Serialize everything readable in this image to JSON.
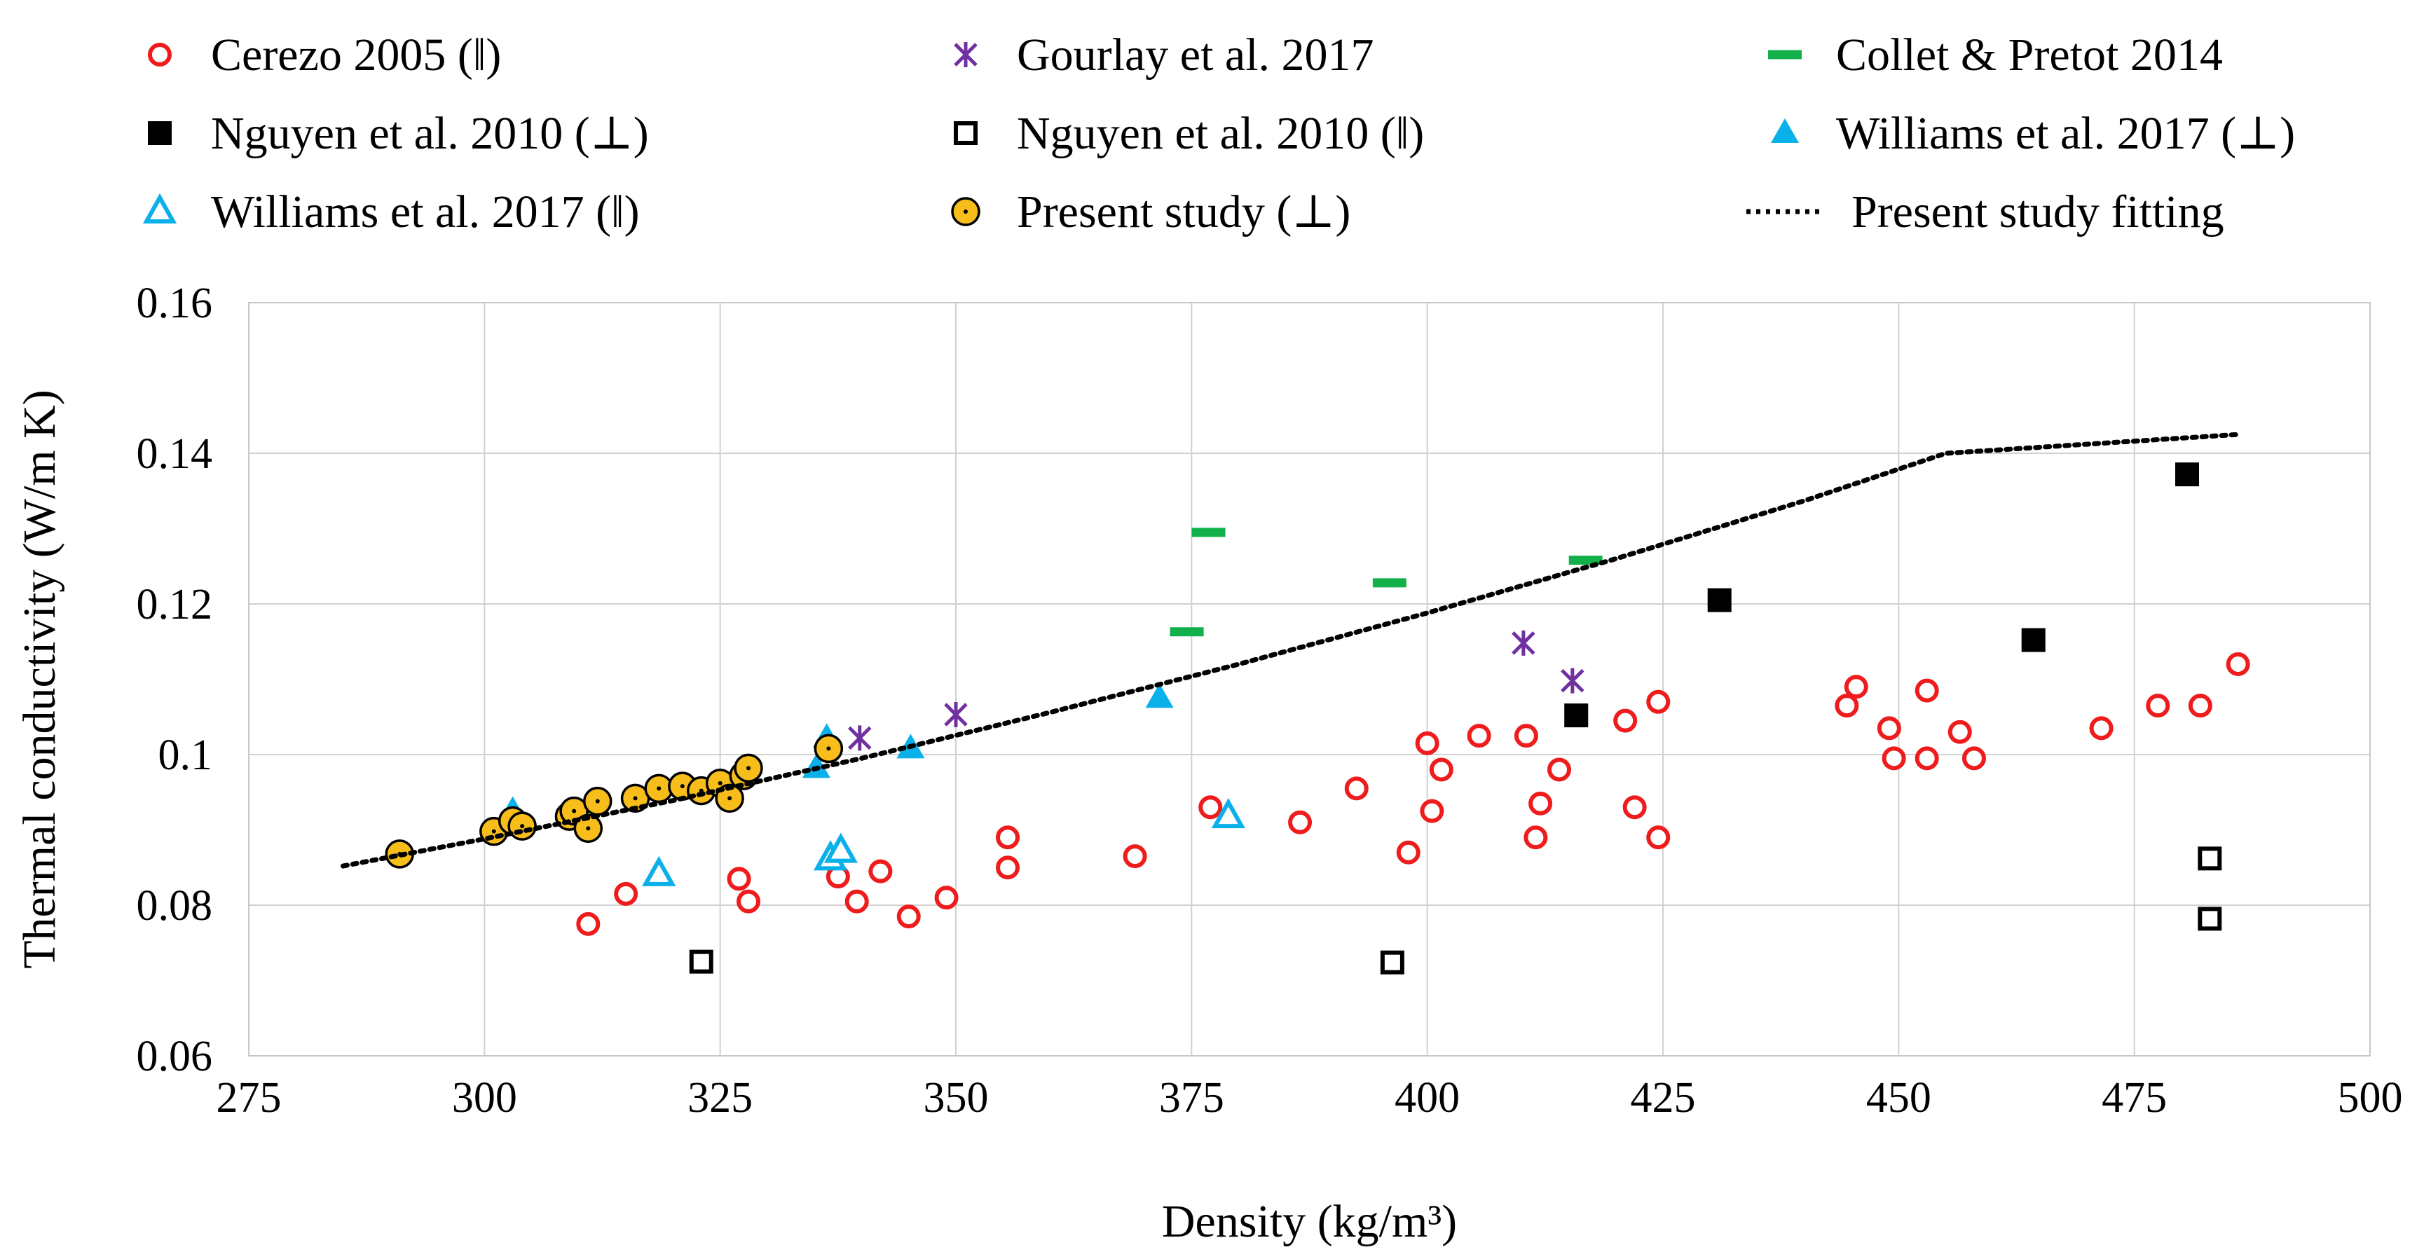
{
  "chart_data": {
    "type": "scatter",
    "title": "",
    "xlabel": "Density (kg/m³)",
    "ylabel": "Thermal conductivity (W/m K)",
    "xlim": [
      275,
      500
    ],
    "ylim": [
      0.06,
      0.16
    ],
    "xticks": [
      "275",
      "300",
      "325",
      "350",
      "375",
      "400",
      "425",
      "450",
      "475",
      "500"
    ],
    "yticks": [
      "0.06",
      "0.08",
      "0.1",
      "0.12",
      "0.14",
      "0.16"
    ],
    "grid": true,
    "legend_position": "top",
    "series": [
      {
        "name": "Cerezo 2005 (ǁ)",
        "marker": "circle-open",
        "color": "#ee1c1c",
        "points": [
          [
            311,
            0.0775
          ],
          [
            315,
            0.0815
          ],
          [
            327,
            0.0835
          ],
          [
            328,
            0.0805
          ],
          [
            337.5,
            0.0838
          ],
          [
            339.5,
            0.0805
          ],
          [
            342,
            0.0845
          ],
          [
            345,
            0.0785
          ],
          [
            349,
            0.081
          ],
          [
            355.5,
            0.089
          ],
          [
            355.5,
            0.085
          ],
          [
            369,
            0.0865
          ],
          [
            377,
            0.093
          ],
          [
            386.5,
            0.091
          ],
          [
            392.5,
            0.0955
          ],
          [
            398,
            0.087
          ],
          [
            400,
            0.1015
          ],
          [
            400.5,
            0.0925
          ],
          [
            401.5,
            0.098
          ],
          [
            405.5,
            0.1025
          ],
          [
            410.5,
            0.1025
          ],
          [
            411.5,
            0.089
          ],
          [
            412,
            0.0935
          ],
          [
            414,
            0.098
          ],
          [
            421,
            0.1045
          ],
          [
            422,
            0.093
          ],
          [
            424.5,
            0.107
          ],
          [
            424.5,
            0.089
          ],
          [
            444.5,
            0.1065
          ],
          [
            445.5,
            0.109
          ],
          [
            449,
            0.1035
          ],
          [
            449.5,
            0.0995
          ],
          [
            453,
            0.1085
          ],
          [
            453,
            0.0995
          ],
          [
            456.5,
            0.103
          ],
          [
            458,
            0.0995
          ],
          [
            471.5,
            0.1035
          ],
          [
            477.5,
            0.1065
          ],
          [
            482,
            0.1065
          ],
          [
            486,
            0.112
          ]
        ]
      },
      {
        "name": "Gourlay et al. 2017",
        "marker": "star",
        "color": "#7030a0",
        "points": [
          [
            339.8,
            0.1022
          ],
          [
            350,
            0.1053
          ],
          [
            410.2,
            0.1148
          ],
          [
            415.4,
            0.1098
          ]
        ]
      },
      {
        "name": "Collet & Pretot 2014",
        "marker": "dash",
        "color": "#12b04a",
        "points": [
          [
            374.5,
            0.1163
          ],
          [
            376.8,
            0.1295
          ],
          [
            396,
            0.1228
          ],
          [
            416.8,
            0.1258
          ]
        ]
      },
      {
        "name": "Nguyen et al. 2010 (⊥)",
        "marker": "square-filled",
        "color": "#000000",
        "points": [
          [
            415.8,
            0.1052
          ],
          [
            431,
            0.1205
          ],
          [
            464.3,
            0.1152
          ],
          [
            480.6,
            0.1372
          ]
        ]
      },
      {
        "name": "Nguyen et al. 2010 (ǁ)",
        "marker": "square-open",
        "color": "#000000",
        "points": [
          [
            323,
            0.0725
          ],
          [
            396.3,
            0.0724
          ],
          [
            483,
            0.0862
          ],
          [
            483,
            0.0782
          ]
        ]
      },
      {
        "name": "Williams et al. 2017 (⊥)",
        "marker": "triangle-filled",
        "color": "#0ab0ea",
        "points": [
          [
            303,
            0.0925
          ],
          [
            335.2,
            0.0982
          ],
          [
            336.3,
            0.1022
          ],
          [
            345.2,
            0.1008
          ],
          [
            371.6,
            0.1075
          ]
        ]
      },
      {
        "name": "Williams  et al. 2017 (ǁ)",
        "marker": "triangle-open",
        "color": "#0ab0ea",
        "points": [
          [
            318.5,
            0.0841
          ],
          [
            336.7,
            0.0862
          ],
          [
            337.8,
            0.0872
          ],
          [
            378.9,
            0.0918
          ]
        ]
      },
      {
        "name": "Present study (⊥)",
        "marker": "circle-filled",
        "color": "#f7bd1b",
        "points": [
          [
            291,
            0.0868
          ],
          [
            301,
            0.0898
          ],
          [
            303,
            0.0912
          ],
          [
            304,
            0.0905
          ],
          [
            309,
            0.0918
          ],
          [
            309.5,
            0.0925
          ],
          [
            311,
            0.0902
          ],
          [
            312,
            0.0938
          ],
          [
            316,
            0.0942
          ],
          [
            318.5,
            0.0955
          ],
          [
            321,
            0.0958
          ],
          [
            323,
            0.0952
          ],
          [
            325,
            0.0962
          ],
          [
            326,
            0.0942
          ],
          [
            327.5,
            0.0972
          ],
          [
            328,
            0.0982
          ],
          [
            336.5,
            0.1008
          ]
        ]
      },
      {
        "name": "Present study fitting",
        "marker": "dotted-line",
        "color": "#000000",
        "points": [
          [
            285,
            0.0852
          ],
          [
            300,
            0.0888
          ],
          [
            320,
            0.0939
          ],
          [
            340,
            0.0995
          ],
          [
            360,
            0.1056
          ],
          [
            380,
            0.112
          ],
          [
            400,
            0.1188
          ],
          [
            420,
            0.126
          ],
          [
            440,
            0.1337
          ],
          [
            455,
            0.14
          ],
          [
            486,
            0.1425
          ]
        ]
      }
    ]
  }
}
